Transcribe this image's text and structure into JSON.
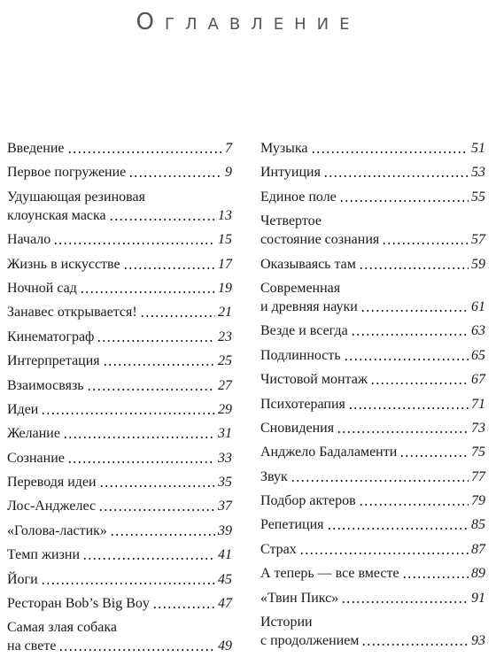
{
  "title": "Оглавление",
  "columns": [
    [
      {
        "lines": [
          "Введение"
        ],
        "page": 7
      },
      {
        "lines": [
          "Первое погружение"
        ],
        "page": 9
      },
      {
        "lines": [
          "Удушающая резиновая",
          "клоунская маска"
        ],
        "page": 13
      },
      {
        "lines": [
          "Начало"
        ],
        "page": 15
      },
      {
        "lines": [
          "Жизнь в искусстве"
        ],
        "page": 17
      },
      {
        "lines": [
          "Ночной сад"
        ],
        "page": 19
      },
      {
        "lines": [
          "Занавес открывается!"
        ],
        "page": 21
      },
      {
        "lines": [
          "Кинематограф"
        ],
        "page": 23
      },
      {
        "lines": [
          "Интерпретация"
        ],
        "page": 25
      },
      {
        "lines": [
          "Взаимосвязь"
        ],
        "page": 27
      },
      {
        "lines": [
          "Идеи"
        ],
        "page": 29
      },
      {
        "lines": [
          "Желание"
        ],
        "page": 31
      },
      {
        "lines": [
          "Сознание"
        ],
        "page": 33
      },
      {
        "lines": [
          "Переводя идеи"
        ],
        "page": 35
      },
      {
        "lines": [
          "Лос-Анджелес"
        ],
        "page": 37
      },
      {
        "lines": [
          "«Голова-ластик»"
        ],
        "page": 39
      },
      {
        "lines": [
          "Темп жизни"
        ],
        "page": 41
      },
      {
        "lines": [
          "Йоги"
        ],
        "page": 45
      },
      {
        "lines": [
          "Ресторан Bob’s Big Boy"
        ],
        "page": 47
      },
      {
        "lines": [
          "Самая злая собака",
          "на свете"
        ],
        "page": 49
      }
    ],
    [
      {
        "lines": [
          "Музыка"
        ],
        "page": 51
      },
      {
        "lines": [
          "Интуиция"
        ],
        "page": 53
      },
      {
        "lines": [
          "Единое поле"
        ],
        "page": 55
      },
      {
        "lines": [
          "Четвертое",
          "состояние сознания"
        ],
        "page": 57
      },
      {
        "lines": [
          "Оказываясь там"
        ],
        "page": 59
      },
      {
        "lines": [
          "Современная",
          "и древняя науки"
        ],
        "page": 61
      },
      {
        "lines": [
          "Везде и всегда"
        ],
        "page": 63
      },
      {
        "lines": [
          "Подлинность"
        ],
        "page": 65
      },
      {
        "lines": [
          "Чистовой монтаж"
        ],
        "page": 67
      },
      {
        "lines": [
          "Психотерапия"
        ],
        "page": 71
      },
      {
        "lines": [
          "Сновидения"
        ],
        "page": 73
      },
      {
        "lines": [
          "Анджело Бадаламенти"
        ],
        "page": 75
      },
      {
        "lines": [
          "Звук"
        ],
        "page": 77
      },
      {
        "lines": [
          "Подбор актеров"
        ],
        "page": 79
      },
      {
        "lines": [
          "Репетиция"
        ],
        "page": 85
      },
      {
        "lines": [
          "Страх"
        ],
        "page": 87
      },
      {
        "lines": [
          "А теперь — все вместе"
        ],
        "page": 89
      },
      {
        "lines": [
          "«Твин Пикс»"
        ],
        "page": 91
      },
      {
        "lines": [
          "Истории",
          "с продолжением"
        ],
        "page": 93
      }
    ]
  ]
}
